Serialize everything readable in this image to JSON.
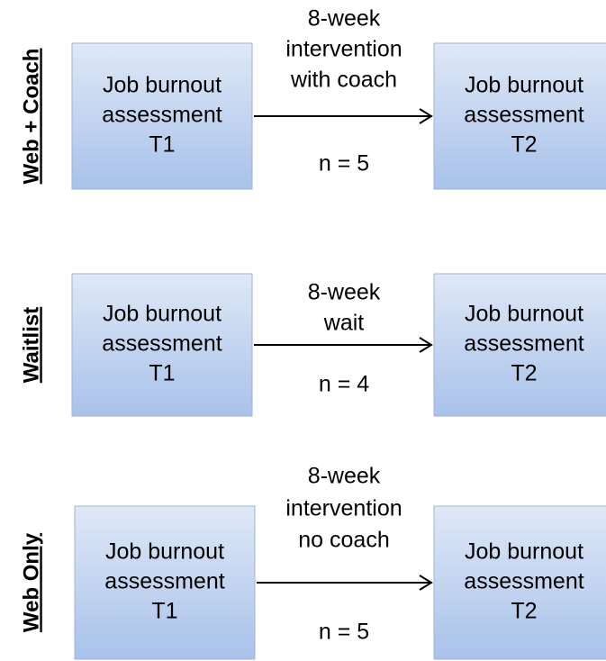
{
  "rows": [
    {
      "group": "Web + Coach",
      "left": [
        "Job burnout",
        "assessment",
        "T1"
      ],
      "arrow_label": [
        "8-week",
        "intervention",
        "with coach"
      ],
      "n": "n = 5",
      "right": [
        "Job burnout",
        "assessment",
        "T2"
      ]
    },
    {
      "group": "Waitlist",
      "left": [
        "Job burnout",
        "assessment",
        "T1"
      ],
      "arrow_label": [
        "8-week",
        "wait"
      ],
      "n": "n = 4",
      "right": [
        "Job burnout",
        "assessment",
        "T2"
      ]
    },
    {
      "group": "Web Only",
      "left": [
        "Job burnout",
        "assessment",
        "T1"
      ],
      "arrow_label": [
        "8-week",
        "intervention",
        "no coach"
      ],
      "n": "n = 5",
      "right": [
        "Job burnout",
        "assessment",
        "T2"
      ]
    }
  ]
}
